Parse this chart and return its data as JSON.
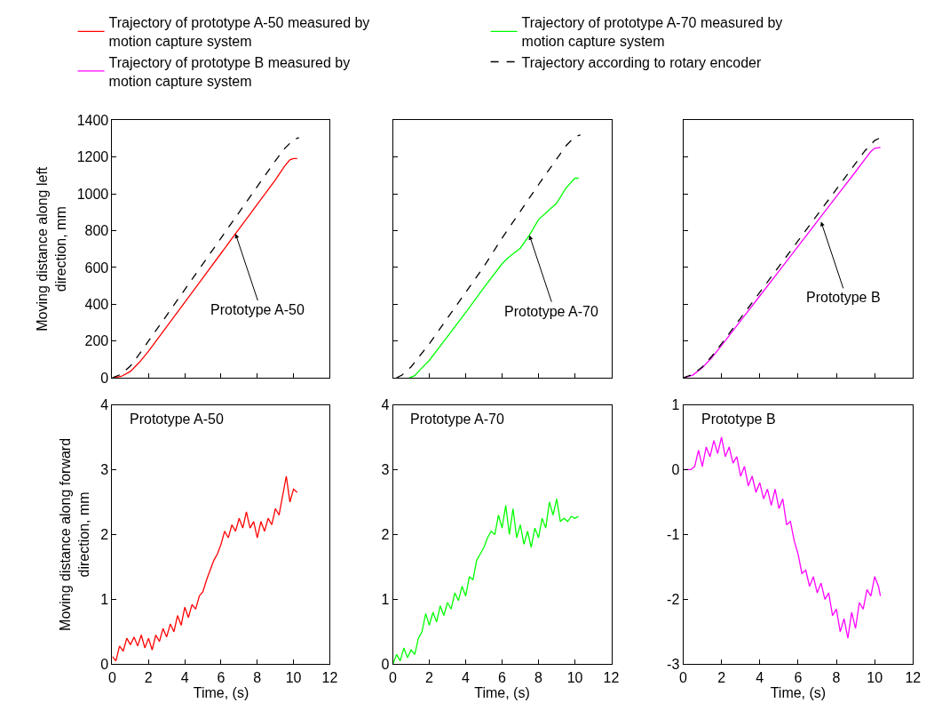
{
  "chart_data": [
    {
      "type": "line",
      "ylabel": "Moving distance along left direction, mm",
      "xlim": [
        0,
        12
      ],
      "xticks": [
        {
          "value": 0,
          "label": null
        },
        {
          "value": 2,
          "label": null
        },
        {
          "value": 4,
          "label": null
        },
        {
          "value": 6,
          "label": null
        },
        {
          "value": 8,
          "label": null
        },
        {
          "value": 10,
          "label": null
        },
        {
          "value": 12,
          "label": null
        }
      ],
      "ylim": [
        0,
        1400
      ],
      "yticks": [
        0,
        200,
        400,
        600,
        800,
        1000,
        1200,
        1400
      ],
      "tick_labels": "y",
      "legend": "top",
      "annotations": [
        {
          "text": "Prototype A-50",
          "x": 6.8,
          "y": 783
        }
      ],
      "series": [
        {
          "name": "Trajectory of prototype A-50 measured by motion capture system",
          "color": "#ff0000",
          "x": [
            0,
            0.5,
            1,
            1.5,
            2,
            3,
            4,
            5,
            6,
            7,
            8,
            9,
            9.5,
            9.8,
            10,
            10.2
          ],
          "values": [
            0,
            8,
            35,
            85,
            145,
            278,
            411,
            544,
            677,
            810,
            943,
            1076,
            1150,
            1185,
            1192,
            1192
          ]
        },
        {
          "name": "Trajectory according to rotary encoder",
          "color": "#000000",
          "line_style": "dashed",
          "x": [
            0,
            0.5,
            1,
            1.5,
            2,
            3,
            4,
            5,
            6,
            7,
            8,
            9,
            9.5,
            10,
            10.3
          ],
          "values": [
            0,
            20,
            65,
            130,
            200,
            340,
            480,
            620,
            760,
            900,
            1040,
            1180,
            1245,
            1295,
            1305
          ]
        }
      ]
    },
    {
      "type": "line",
      "xlim": [
        0,
        12
      ],
      "xticks": [
        {
          "value": 0,
          "label": null
        },
        {
          "value": 2,
          "label": null
        },
        {
          "value": 4,
          "label": null
        },
        {
          "value": 6,
          "label": null
        },
        {
          "value": 8,
          "label": null
        },
        {
          "value": 10,
          "label": null
        },
        {
          "value": 12,
          "label": null
        }
      ],
      "ylim": [
        0,
        1400
      ],
      "yticks": [
        {
          "value": 0,
          "label": null
        },
        {
          "value": 200,
          "label": null
        },
        {
          "value": 400,
          "label": null
        },
        {
          "value": 600,
          "label": null
        },
        {
          "value": 800,
          "label": null
        },
        {
          "value": 1000,
          "label": null
        },
        {
          "value": 1200,
          "label": null
        },
        {
          "value": 1400,
          "label": null
        }
      ],
      "tick_labels": false,
      "legend": "top",
      "annotations": [
        {
          "text": "Prototype A-70",
          "x": 7.5,
          "y": 775
        }
      ],
      "series": [
        {
          "name": "Trajectory of prototype A-70 measured by motion capture system",
          "color": "#00ff00",
          "x": [
            0.9,
            1.2,
            1.5,
            2,
            3,
            4,
            5,
            6,
            6.3,
            7,
            7.5,
            8,
            9,
            9.5,
            10,
            10.2
          ],
          "values": [
            0,
            12,
            45,
            95,
            225,
            355,
            490,
            620,
            650,
            705,
            775,
            860,
            950,
            1030,
            1085,
            1085
          ]
        },
        {
          "name": "Trajectory according to rotary encoder",
          "color": "#000000",
          "line_style": "dashed",
          "x": [
            0.2,
            0.5,
            1,
            2,
            3,
            4,
            5,
            6,
            7,
            8,
            9,
            9.5,
            10,
            10.3
          ],
          "values": [
            0,
            15,
            60,
            185,
            325,
            465,
            605,
            760,
            905,
            1050,
            1190,
            1260,
            1310,
            1320
          ]
        }
      ]
    },
    {
      "type": "line",
      "xlim": [
        0,
        12
      ],
      "xticks": [
        {
          "value": 0,
          "label": null
        },
        {
          "value": 2,
          "label": null
        },
        {
          "value": 4,
          "label": null
        },
        {
          "value": 6,
          "label": null
        },
        {
          "value": 8,
          "label": null
        },
        {
          "value": 10,
          "label": null
        },
        {
          "value": 12,
          "label": null
        }
      ],
      "ylim": [
        0,
        1400
      ],
      "yticks": [
        {
          "value": 0,
          "label": null
        },
        {
          "value": 200,
          "label": null
        },
        {
          "value": 400,
          "label": null
        },
        {
          "value": 600,
          "label": null
        },
        {
          "value": 800,
          "label": null
        },
        {
          "value": 1000,
          "label": null
        },
        {
          "value": 1200,
          "label": null
        },
        {
          "value": 1400,
          "label": null
        }
      ],
      "tick_labels": false,
      "legend": "top",
      "annotations": [
        {
          "text": "Prototype B",
          "x": 7.2,
          "y": 849
        }
      ],
      "series": [
        {
          "name": "Trajectory of prototype B measured by motion capture system",
          "color": "#ff00ff",
          "x": [
            0,
            0.5,
            1,
            1.5,
            2,
            3,
            4,
            5,
            6,
            7,
            8,
            9,
            9.5,
            9.8,
            10,
            10.3
          ],
          "values": [
            0,
            15,
            55,
            110,
            175,
            310,
            445,
            580,
            715,
            850,
            985,
            1120,
            1190,
            1230,
            1248,
            1252
          ]
        },
        {
          "name": "Trajectory according to rotary encoder",
          "color": "#000000",
          "line_style": "dashed",
          "x": [
            0,
            0.5,
            1,
            1.5,
            2,
            3,
            4,
            5,
            6,
            7,
            8,
            9,
            9.5,
            10,
            10.3
          ],
          "values": [
            0,
            18,
            60,
            118,
            185,
            325,
            465,
            605,
            745,
            885,
            1025,
            1165,
            1235,
            1290,
            1305
          ]
        }
      ]
    },
    {
      "type": "line",
      "xlabel": "Time, (s)",
      "ylabel": "Moving distance along forward direction, mm",
      "xlim": [
        0,
        12
      ],
      "xticks": [
        0,
        2,
        4,
        6,
        8,
        10,
        12
      ],
      "ylim": [
        0,
        4
      ],
      "yticks": [
        0,
        1,
        2,
        3,
        4
      ],
      "annotations": [
        "Prototype A-50"
      ],
      "series": [
        {
          "color": "#ff0000",
          "x": [
            0,
            0.2,
            0.4,
            0.6,
            0.8,
            1.0,
            1.2,
            1.4,
            1.6,
            1.8,
            2.0,
            2.2,
            2.4,
            2.6,
            2.8,
            3.0,
            3.2,
            3.4,
            3.6,
            3.8,
            4.0,
            4.2,
            4.4,
            4.6,
            4.8,
            5.0,
            5.2,
            5.4,
            5.6,
            5.8,
            6.0,
            6.2,
            6.4,
            6.6,
            6.8,
            7.0,
            7.2,
            7.4,
            7.6,
            7.8,
            8.0,
            8.2,
            8.4,
            8.6,
            8.8,
            9.0,
            9.2,
            9.4,
            9.6,
            9.8,
            10.0,
            10.2
          ],
          "values": [
            0.12,
            0.05,
            0.28,
            0.2,
            0.4,
            0.3,
            0.42,
            0.28,
            0.45,
            0.25,
            0.4,
            0.22,
            0.45,
            0.35,
            0.55,
            0.42,
            0.62,
            0.5,
            0.75,
            0.6,
            0.88,
            0.72,
            0.92,
            0.85,
            1.05,
            1.12,
            1.3,
            1.45,
            1.6,
            1.7,
            1.85,
            2.05,
            1.95,
            2.15,
            2.05,
            2.25,
            2.1,
            2.35,
            2.1,
            2.2,
            1.95,
            2.2,
            2.05,
            2.25,
            2.15,
            2.4,
            2.3,
            2.6,
            2.9,
            2.5,
            2.7,
            2.65
          ]
        }
      ]
    },
    {
      "type": "line",
      "xlabel": "Time, (s)",
      "xlim": [
        0,
        12
      ],
      "xticks": [
        0,
        2,
        4,
        6,
        8,
        10,
        12
      ],
      "ylim": [
        0,
        4
      ],
      "yticks": [
        0,
        1,
        2,
        3,
        4
      ],
      "annotations": [
        "Prototype A-70"
      ],
      "series": [
        {
          "color": "#00ff00",
          "x": [
            0,
            0.2,
            0.4,
            0.6,
            0.8,
            1.0,
            1.2,
            1.4,
            1.6,
            1.8,
            2.0,
            2.2,
            2.4,
            2.6,
            2.8,
            3.0,
            3.2,
            3.4,
            3.6,
            3.8,
            4.0,
            4.2,
            4.4,
            4.6,
            4.8,
            5.0,
            5.2,
            5.4,
            5.6,
            5.8,
            6.0,
            6.2,
            6.4,
            6.6,
            6.8,
            7.0,
            7.2,
            7.4,
            7.6,
            7.8,
            8.0,
            8.2,
            8.4,
            8.6,
            8.8,
            9.0,
            9.2,
            9.4,
            9.6,
            9.8,
            10.0,
            10.2
          ],
          "values": [
            0.0,
            0.15,
            0.05,
            0.25,
            0.1,
            0.22,
            0.15,
            0.4,
            0.5,
            0.78,
            0.6,
            0.8,
            0.65,
            0.9,
            0.75,
            0.95,
            0.85,
            1.1,
            0.98,
            1.2,
            1.05,
            1.35,
            1.3,
            1.6,
            1.7,
            1.8,
            1.95,
            2.05,
            2.0,
            2.3,
            2.1,
            2.45,
            2.0,
            2.4,
            1.95,
            2.15,
            1.85,
            2.05,
            1.8,
            2.1,
            1.95,
            2.25,
            2.1,
            2.5,
            2.3,
            2.55,
            2.2,
            2.25,
            2.2,
            2.28,
            2.25,
            2.28
          ]
        }
      ]
    },
    {
      "type": "line",
      "xlabel": "Time, (s)",
      "xlim": [
        0,
        12
      ],
      "xticks": [
        0,
        2,
        4,
        6,
        8,
        10,
        12
      ],
      "ylim": [
        -3,
        1
      ],
      "yticks": [
        -3,
        -2,
        -1,
        0,
        1
      ],
      "annotations": [
        "Prototype B"
      ],
      "series": [
        {
          "color": "#ff00ff",
          "x": [
            0,
            0.4,
            0.6,
            0.8,
            1.0,
            1.2,
            1.4,
            1.6,
            1.8,
            2.0,
            2.2,
            2.4,
            2.6,
            2.8,
            3.0,
            3.2,
            3.4,
            3.6,
            3.8,
            4.0,
            4.2,
            4.4,
            4.6,
            4.8,
            5.0,
            5.2,
            5.4,
            5.6,
            5.8,
            6.0,
            6.2,
            6.4,
            6.6,
            6.8,
            7.0,
            7.2,
            7.4,
            7.6,
            7.8,
            8.0,
            8.2,
            8.4,
            8.6,
            8.8,
            9.0,
            9.2,
            9.4,
            9.6,
            9.8,
            10.0,
            10.2,
            10.3
          ],
          "values": [
            0,
            0,
            0.05,
            0.3,
            0.05,
            0.35,
            0.2,
            0.45,
            0.25,
            0.5,
            0.2,
            0.35,
            0.1,
            0.2,
            -0.1,
            0.05,
            -0.25,
            -0.1,
            -0.35,
            -0.2,
            -0.45,
            -0.3,
            -0.55,
            -0.3,
            -0.6,
            -0.45,
            -0.85,
            -0.8,
            -1.1,
            -1.3,
            -1.6,
            -1.55,
            -1.8,
            -1.65,
            -1.9,
            -1.75,
            -2.0,
            -1.9,
            -2.25,
            -2.15,
            -2.5,
            -2.3,
            -2.6,
            -2.2,
            -2.45,
            -2.05,
            -2.15,
            -1.85,
            -1.95,
            -1.65,
            -1.8,
            -1.95
          ]
        }
      ]
    }
  ]
}
